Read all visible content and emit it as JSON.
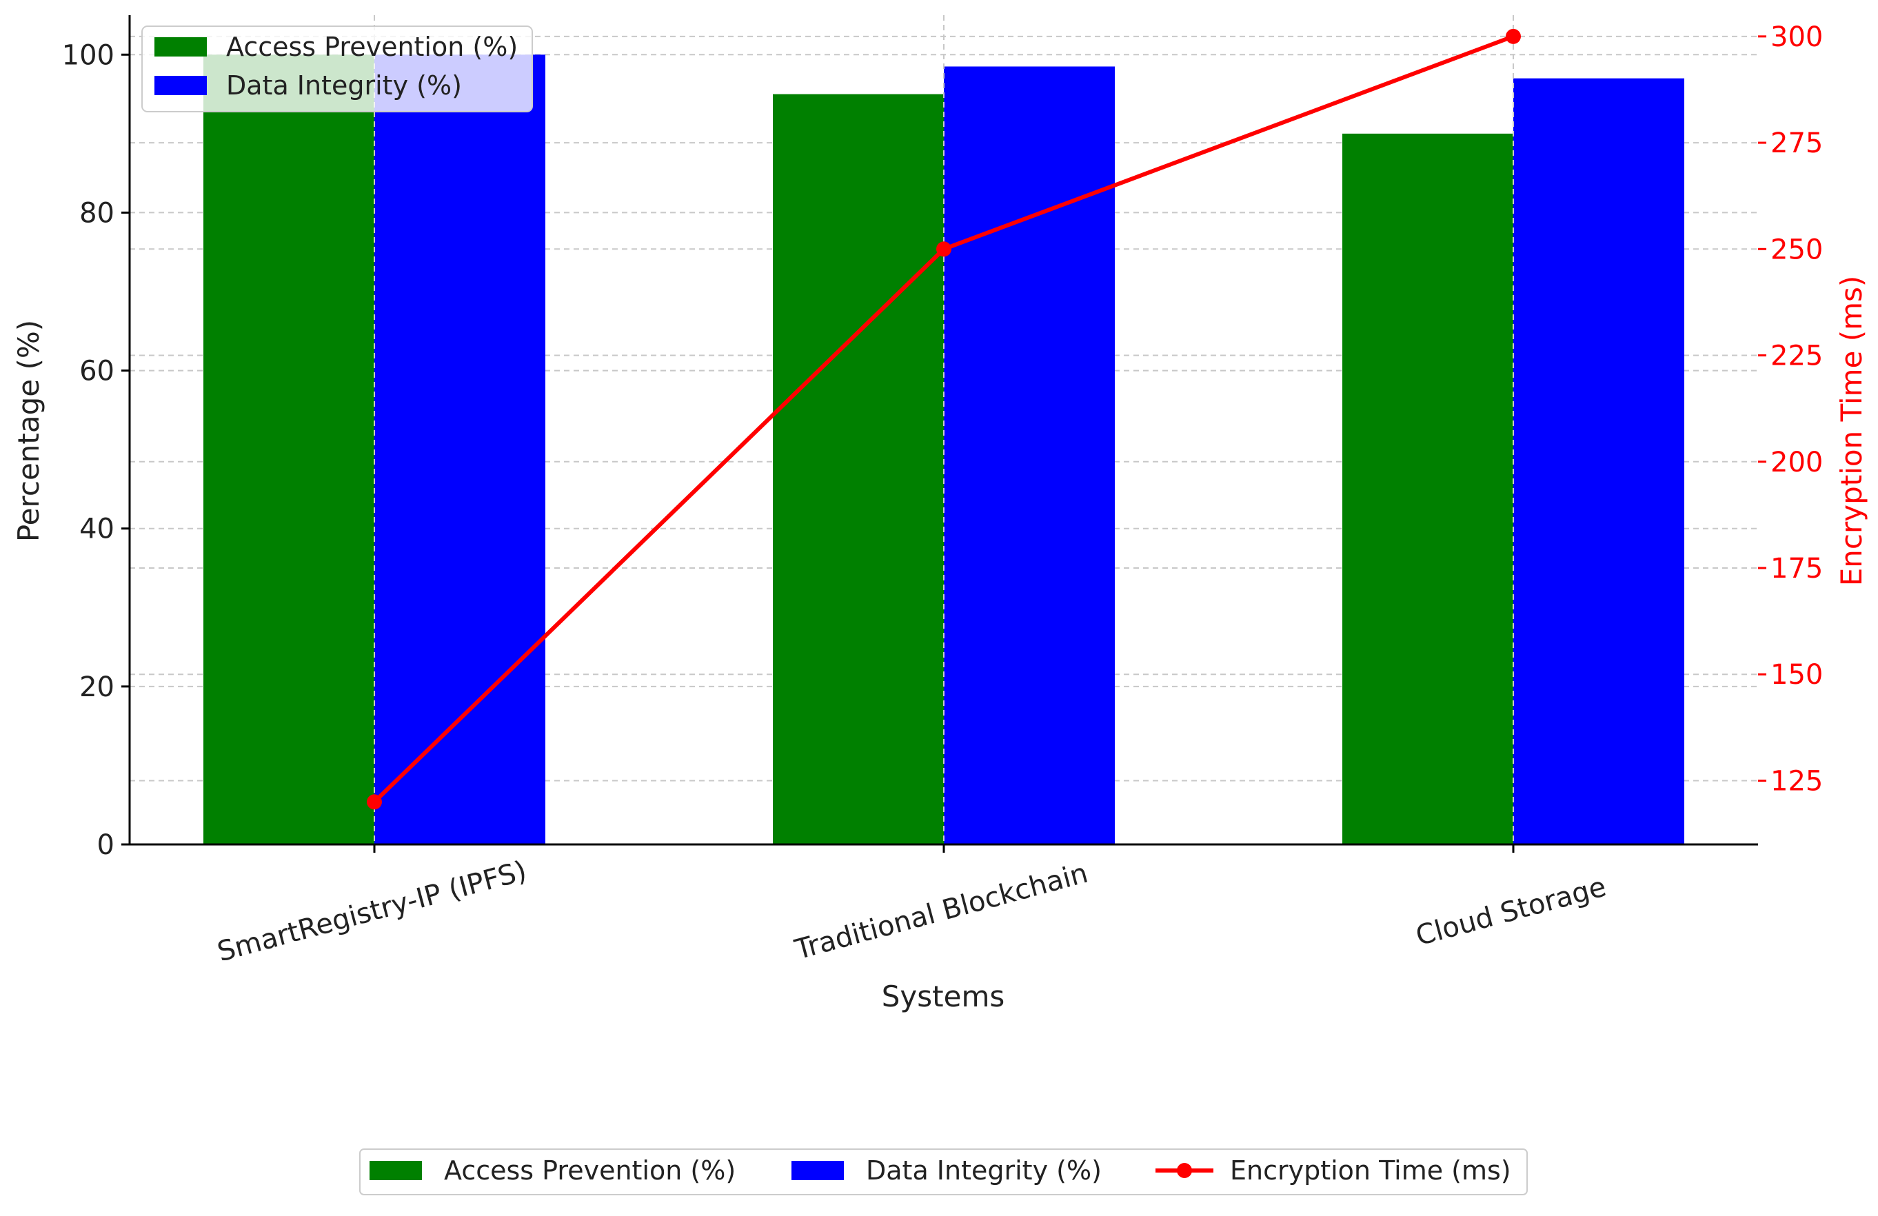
{
  "chart_data": {
    "type": "bar",
    "categories": [
      "SmartRegistry-IP (IPFS)",
      "Traditional Blockchain",
      "Cloud Storage"
    ],
    "series": [
      {
        "name": "Access Prevention (%)",
        "values": [
          100,
          95,
          90
        ],
        "color": "#008000",
        "kind": "bar",
        "axis": "left"
      },
      {
        "name": "Data Integrity (%)",
        "values": [
          100,
          98.5,
          97
        ],
        "color": "#0000ff",
        "kind": "bar",
        "axis": "left"
      },
      {
        "name": "Encryption Time (ms)",
        "values": [
          120,
          250,
          300
        ],
        "color": "#ff0000",
        "kind": "line",
        "axis": "right"
      }
    ],
    "xlabel": "Systems",
    "ylabel": "Percentage (%)",
    "y2label": "Encryption Time (ms)",
    "ylim": [
      0,
      105
    ],
    "y2lim": [
      110,
      305
    ],
    "yticks": [
      0,
      20,
      40,
      60,
      80,
      100
    ],
    "y2ticks": [
      125,
      150,
      175,
      200,
      225,
      250,
      275,
      300
    ],
    "grid": true,
    "legend_inner": {
      "placement": "top-left",
      "entries": [
        "Access Prevention (%)",
        "Data Integrity (%)"
      ]
    },
    "legend_outer": {
      "placement": "bottom-center",
      "entries": [
        "Access Prevention (%)",
        "Data Integrity (%)",
        "Encryption Time (ms)"
      ]
    }
  }
}
